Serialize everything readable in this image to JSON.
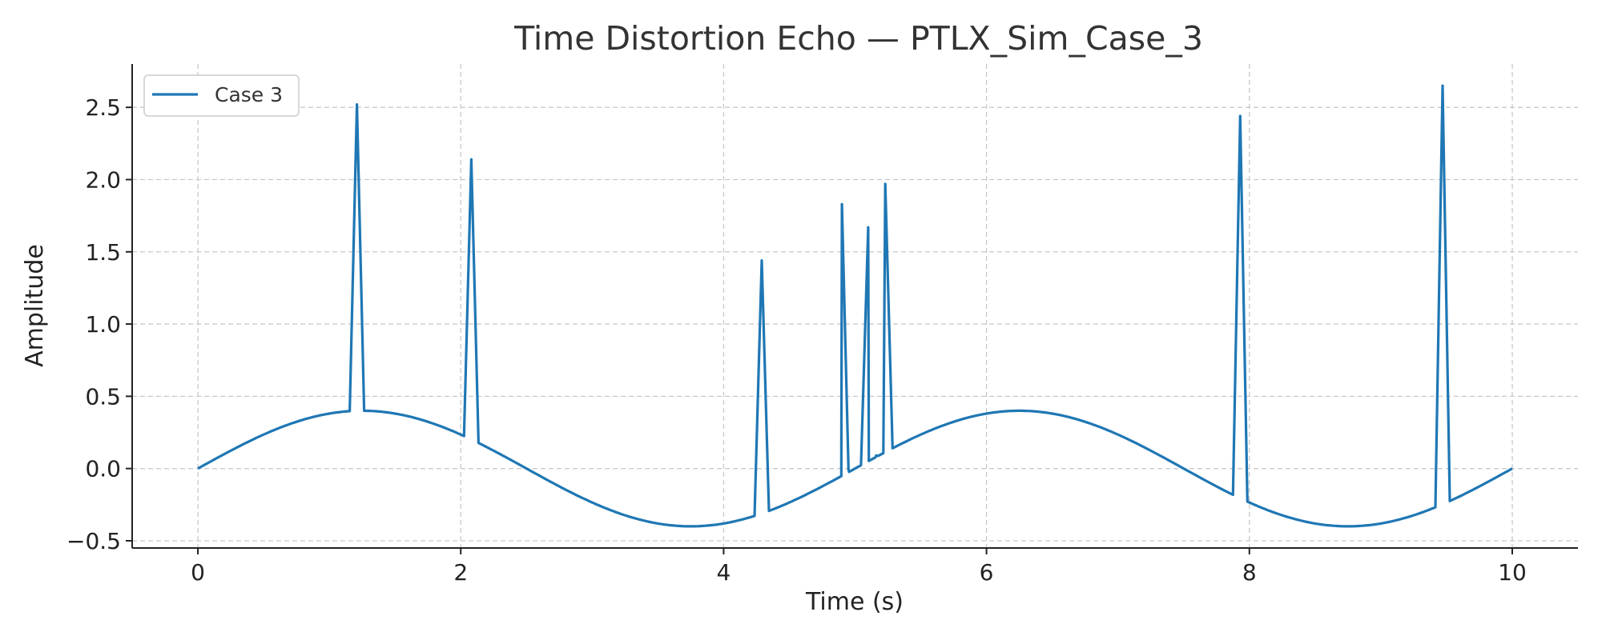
{
  "chart_data": {
    "type": "line",
    "title": "Time Distortion Echo — PTLX_Sim_Case_3",
    "xlabel": "Time (s)",
    "ylabel": "Amplitude",
    "xlim": [
      -0.5,
      10.5
    ],
    "ylim": [
      -0.55,
      2.8
    ],
    "xticks": [
      0,
      2,
      4,
      6,
      8,
      10
    ],
    "xtick_labels": [
      "0",
      "2",
      "4",
      "6",
      "8",
      "10"
    ],
    "yticks": [
      -0.5,
      0.0,
      0.5,
      1.0,
      1.5,
      2.0,
      2.5
    ],
    "ytick_labels": [
      "−0.5",
      "0.0",
      "0.5",
      "1.0",
      "1.5",
      "2.0",
      "2.5"
    ],
    "grid": true,
    "legend_position": "top-left",
    "base_amplitude": 0.4,
    "base_period": 5,
    "spikes": [
      {
        "x": 1.21,
        "y": 2.52
      },
      {
        "x": 2.08,
        "y": 2.14
      },
      {
        "x": 4.29,
        "y": 1.44
      },
      {
        "x": 4.9,
        "y": 1.83
      },
      {
        "x": 4.95,
        "y": -0.01
      },
      {
        "x": 5.1,
        "y": 1.67
      },
      {
        "x": 5.16,
        "y": 0.09
      },
      {
        "x": 5.23,
        "y": 1.97
      },
      {
        "x": 7.93,
        "y": 2.44
      },
      {
        "x": 9.47,
        "y": 2.65
      }
    ],
    "series": [
      {
        "name": "Case 3",
        "color": "#1f77b4"
      }
    ]
  }
}
